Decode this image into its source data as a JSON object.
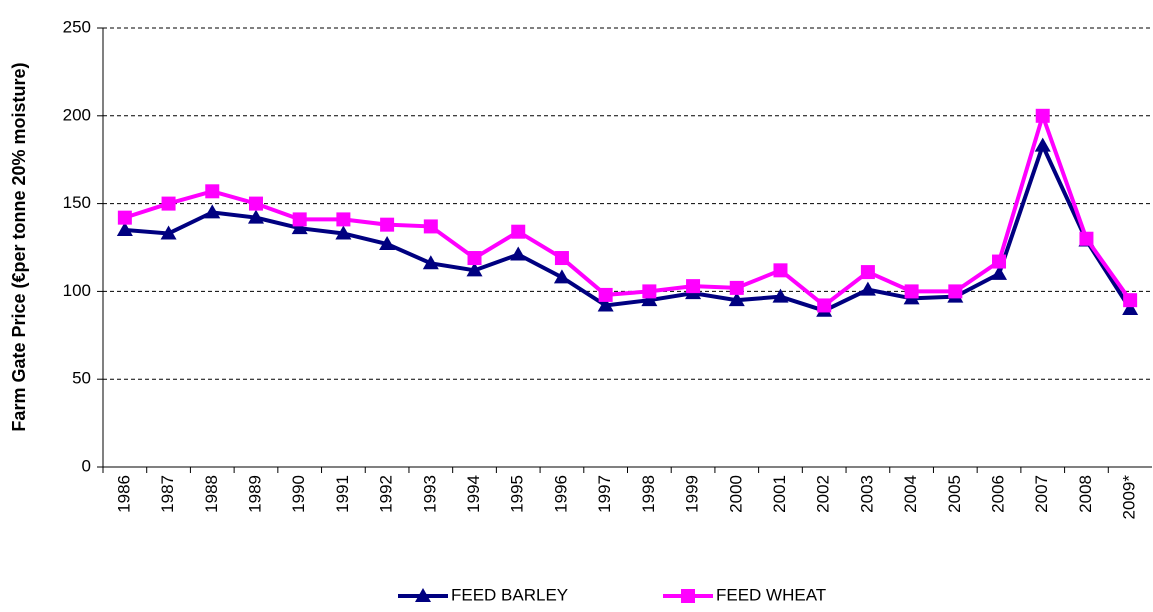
{
  "chart_data": {
    "type": "line",
    "y_label": "Farm Gate Price (€per tonne 20% moisture)",
    "categories": [
      "1986",
      "1987",
      "1988",
      "1989",
      "1990",
      "1991",
      "1992",
      "1993",
      "1994",
      "1995",
      "1996",
      "1997",
      "1998",
      "1999",
      "2000",
      "2001",
      "2002",
      "2003",
      "2004",
      "2005",
      "2006",
      "2007",
      "2008",
      "2009*"
    ],
    "series": [
      {
        "name": "FEED BARLEY",
        "color": "#000080",
        "marker": "triangle",
        "values": [
          135,
          133,
          145,
          142,
          136,
          133,
          127,
          116,
          112,
          121,
          108,
          92,
          95,
          99,
          95,
          97,
          89,
          101,
          96,
          97,
          110,
          183,
          129,
          90
        ]
      },
      {
        "name": "FEED WHEAT",
        "color": "#ff00ff",
        "marker": "square",
        "values": [
          142,
          150,
          157,
          150,
          141,
          141,
          138,
          137,
          119,
          134,
          119,
          98,
          100,
          103,
          102,
          112,
          92,
          111,
          100,
          100,
          117,
          200,
          130,
          95
        ]
      }
    ],
    "ylim": [
      0,
      250
    ],
    "yticks": [
      0,
      50,
      100,
      150,
      200,
      250
    ],
    "grid": true,
    "legend": "bottom"
  }
}
